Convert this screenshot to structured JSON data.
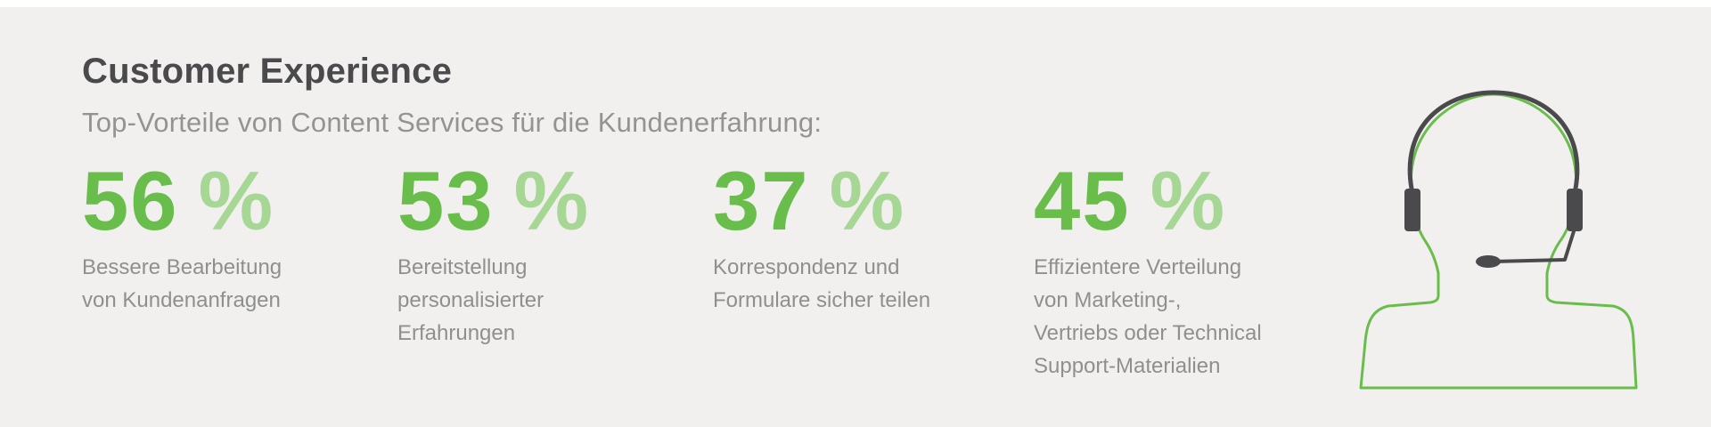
{
  "header": {
    "title": "Customer Experience",
    "subtitle": "Top-Vorteile von Content Services für die Kundenerfahrung:"
  },
  "stats": [
    {
      "value": "56",
      "unit": "%",
      "label": "Bessere Bearbeitung\nvon Kundenanfragen"
    },
    {
      "value": "53",
      "unit": "%",
      "label": "Bereitstellung\npersonalisierter\nErfahrungen"
    },
    {
      "value": "37",
      "unit": "%",
      "label": "Korrespondenz und\nFormulare sicher teilen"
    },
    {
      "value": "45",
      "unit": "%",
      "label": "Effizientere Verteilung\nvon Marketing-,\nVertriebs oder Technical\nSupport-Materialien"
    }
  ],
  "colors": {
    "number": "#69be4b",
    "percent": "#a7d794",
    "title": "#4a4a4d",
    "text": "#8f8f8f",
    "background": "#f1f0ef",
    "headset": "#4a4a4d",
    "outline": "#69be4b"
  },
  "icon": "customer-support-headset-icon"
}
